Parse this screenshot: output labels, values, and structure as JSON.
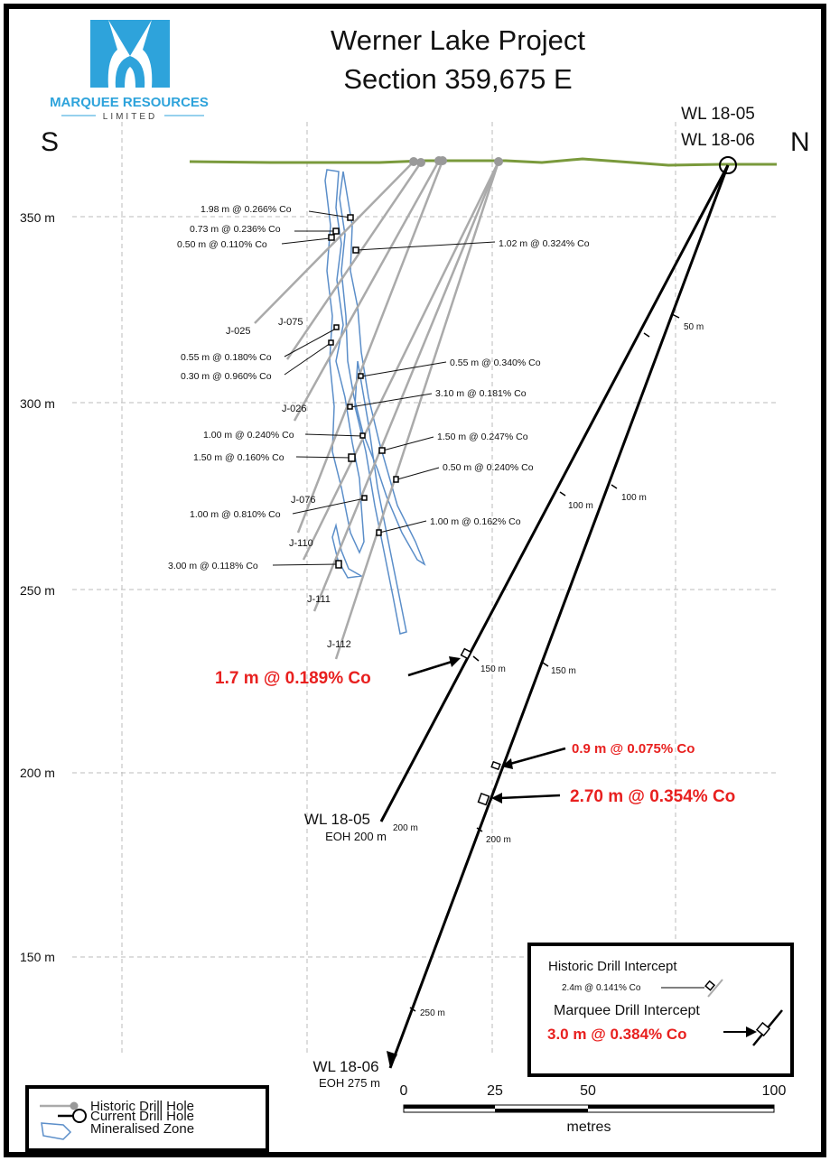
{
  "logo": {
    "name": "MARQUEE RESOURCES",
    "sub": "LIMITED"
  },
  "title": {
    "line1": "Werner Lake Project",
    "line2": "Section 359,675 E"
  },
  "compass": {
    "south": "S",
    "north": "N"
  },
  "collar_labels": {
    "hole1": "WL 18-05",
    "hole2": "WL 18-06"
  },
  "elevations": [
    "350 m",
    "300 m",
    "250 m",
    "200 m",
    "150 m"
  ],
  "historic_holes": [
    "J-025",
    "J-075",
    "J-026",
    "J-076",
    "J-110",
    "J-111",
    "J-112"
  ],
  "historic_intercepts": [
    "1.98 m @ 0.266% Co",
    "0.73 m @ 0.236% Co",
    "0.50 m @ 0.110% Co",
    "1.02 m @ 0.324% Co",
    "0.55 m @ 0.180% Co",
    "0.30 m @ 0.960% Co",
    "0.55 m @ 0.340% Co",
    "3.10 m @ 0.181% Co",
    "1.00 m @ 0.240% Co",
    "1.50 m @ 0.247% Co",
    "1.50 m @ 0.160% Co",
    "0.50 m @ 0.240% Co",
    "1.00 m @ 0.810% Co",
    "1.00 m @ 0.162% Co",
    "3.00 m @ 0.118% Co"
  ],
  "marquee_intercepts": [
    "1.7 m @ 0.189% Co",
    "0.9 m @ 0.075% Co",
    "2.70 m @ 0.354% Co"
  ],
  "depth_marks": [
    "50 m",
    "100 m",
    "100 m",
    "150 m",
    "150 m",
    "200 m",
    "200 m",
    "250 m"
  ],
  "end_labels": {
    "hole1_name": "WL 18-05",
    "hole1_eoh": "EOH 200 m",
    "hole2_name": "WL 18-06",
    "hole2_eoh": "EOH 275 m"
  },
  "legend": {
    "items": [
      "Historic Drill Hole",
      "Current Drill Hole",
      "Mineralised Zone"
    ]
  },
  "intercept_legend": {
    "historic_title": "Historic Drill Intercept",
    "historic_example": "2.4m @ 0.141% Co",
    "marquee_title": "Marquee Drill Intercept",
    "marquee_example": "3.0 m @ 0.384% Co"
  },
  "scale_bar": {
    "ticks": [
      "0",
      "25",
      "50",
      "100"
    ],
    "unit": "metres"
  },
  "colors": {
    "border": "#000000",
    "topography": "#7a9a3c",
    "historic_hole": "#aaaaaa",
    "current_hole": "#000000",
    "zone": "#5b8ec9",
    "highlight": "#e8201f",
    "logo_blue": "#2ea3db",
    "grid": "#bbbbbb"
  }
}
